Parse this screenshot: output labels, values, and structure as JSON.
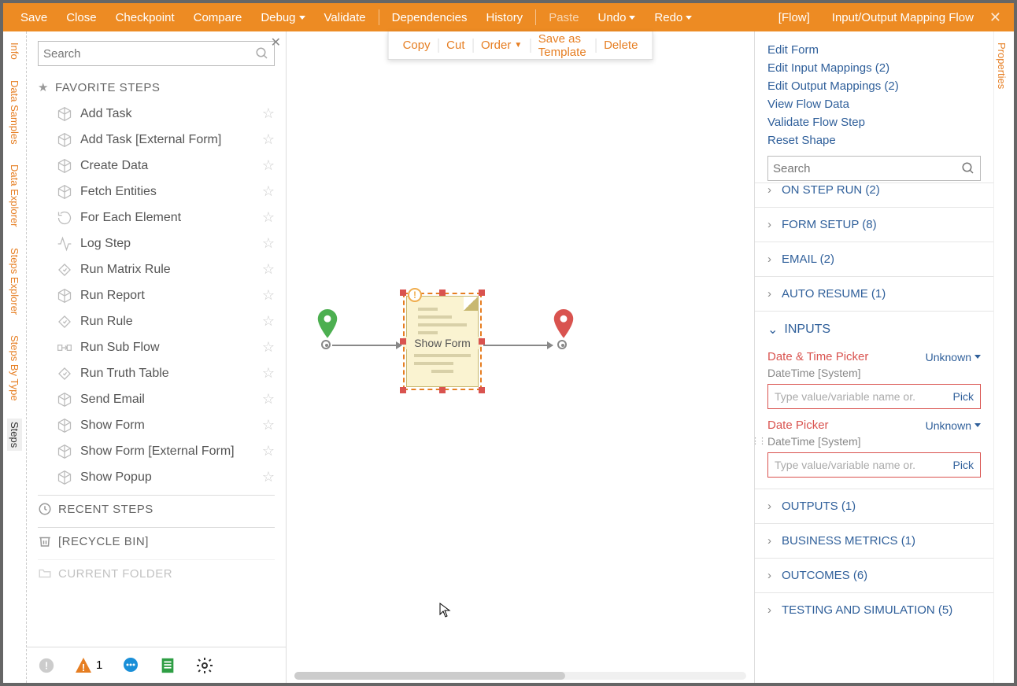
{
  "topbar": {
    "save": "Save",
    "close": "Close",
    "checkpoint": "Checkpoint",
    "compare": "Compare",
    "debug": "Debug",
    "validate": "Validate",
    "dependencies": "Dependencies",
    "history": "History",
    "paste": "Paste",
    "undo": "Undo",
    "redo": "Redo",
    "context": "[Flow]",
    "title": "Input/Output Mapping Flow"
  },
  "leftTabs": [
    "Info",
    "Data Samples",
    "Data Explorer",
    "Steps Explorer",
    "Steps By Type",
    "Steps"
  ],
  "leftActiveTab": 5,
  "leftSearchPlaceholder": "Search",
  "favoriteStepsHeader": "FAVORITE STEPS",
  "favoriteSteps": [
    {
      "label": "Add Task",
      "icon": "cube"
    },
    {
      "label": "Add Task [External Form]",
      "icon": "cube"
    },
    {
      "label": "Create Data",
      "icon": "cube"
    },
    {
      "label": "Fetch Entities",
      "icon": "cube"
    },
    {
      "label": "For Each Element",
      "icon": "loop"
    },
    {
      "label": "Log Step",
      "icon": "pulse"
    },
    {
      "label": "Run Matrix Rule",
      "icon": "diamond"
    },
    {
      "label": "Run Report",
      "icon": "cube"
    },
    {
      "label": "Run Rule",
      "icon": "diamond"
    },
    {
      "label": "Run Sub Flow",
      "icon": "subflow"
    },
    {
      "label": "Run Truth Table",
      "icon": "diamond"
    },
    {
      "label": "Send Email",
      "icon": "cube"
    },
    {
      "label": "Show Form",
      "icon": "cube"
    },
    {
      "label": "Show Form [External Form]",
      "icon": "cube"
    },
    {
      "label": "Show Popup",
      "icon": "cube"
    }
  ],
  "recentStepsHeader": "RECENT STEPS",
  "recycleBinHeader": "[RECYCLE BIN]",
  "currentFolderHeader": "CURRENT FOLDER",
  "bottomWarningCount": "1",
  "canvasToolbar": {
    "copy": "Copy",
    "cut": "Cut",
    "order": "Order",
    "saveTemplate": "Save as Template",
    "delete": "Delete"
  },
  "flowNodeLabel": "Show Form",
  "rightTabs": [
    "Properties"
  ],
  "rightLinks": [
    "Edit Form",
    "Edit Input Mappings  (2)",
    "Edit Output Mappings  (2)",
    "View Flow Data",
    "Validate Flow Step",
    "Reset Shape"
  ],
  "rightSearchPlaceholder": "Search",
  "rightSections": {
    "onStepRun": "ON STEP RUN  (2)",
    "formSetup": "FORM SETUP  (8)",
    "email": "EMAIL  (2)",
    "autoResume": "AUTO RESUME  (1)",
    "inputs": "INPUTS",
    "outputs": "OUTPUTS  (1)",
    "businessMetrics": "BUSINESS METRICS  (1)",
    "outcomes": "OUTCOMES  (6)",
    "testing": "TESTING AND SIMULATION  (5)"
  },
  "inputFields": [
    {
      "name": "Date & Time Picker",
      "type": "Unknown",
      "sub": "DateTime [System]",
      "placeholder": "Type value/variable name or.",
      "pick": "Pick"
    },
    {
      "name": "Date Picker",
      "type": "Unknown",
      "sub": "DateTime [System]",
      "placeholder": "Type value/variable name or.",
      "pick": "Pick"
    }
  ],
  "colors": {
    "primary": "#ed8b23",
    "link": "#2f5f9a",
    "danger": "#d9534f"
  }
}
